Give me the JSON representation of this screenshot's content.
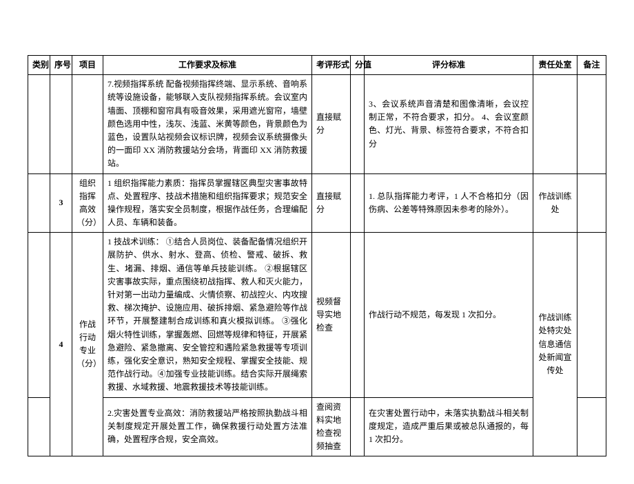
{
  "headers": {
    "category": "类别",
    "seq": "序号",
    "project": "项目",
    "requirement": "工作要求及标准",
    "form": "考评形式",
    "score": "分值",
    "criteria": "评分标准",
    "dept": "责任处室",
    "note": "备注"
  },
  "rows": [
    {
      "category": "",
      "seq": "",
      "project": "",
      "requirement": "7.视频指挥系统 配备视频指挥终端、显示系统、音响系统等设施设备，能够联入支队视频指挥系统。会议室内墙面、顶棚和窗帘具有吸音效果，采用遮光窗帘，墙壁颜色选用中性，浅灰、浅蓝、米黄等颜色，背景颜色为蓝色，设置队站视频会议标识牌，视频会议系统摄像头的一面印 XX 消防救援站分会场，背面印 XX 消防救援站。",
      "form": "直接赋分",
      "score": "",
      "criteria": "3、会议系统声音清楚和图像清晰，会议控制正常，不符合要求，扣分。\n4、会议室颜色、灯光、背景、标签符合要求，不符合扣分",
      "dept": "",
      "note": ""
    },
    {
      "category": "",
      "seq": "3",
      "project": "组织指挥高效（分）",
      "requirement": "1 组织指挥能力素质：指挥员掌握辖区典型灾害事故特点、处置程序、技战术措施和组织指挥要求；规范安全操作规程，落实安全员制度，根据作战任务，合理编配人员、车辆和装备。",
      "form": "直接赋分",
      "score": "",
      "criteria": "1. 总队指挥能力考评，1 人不合格扣分（因伤病、公差等特殊原因未参考的除外）。",
      "dept": "作战训练处",
      "note": ""
    },
    {
      "category": "",
      "seq": "4",
      "project": "作战行动专业（分）",
      "requirement": "1 技战术训练：\n①结合人员岗位、装备配备情况组织开展防护、供水、射水、登高、侦检、警戒、破拆、救生、堵漏、排烟、通信等单兵技能训练。\n②根据辖区灾害事故实际，重点围绕初战指挥、救人和灭火能力，针对第一出动力量编成、火情侦察、初战控火、内攻搜救、梯次掩护、设施应用、破拆排烟、紧急避险等作战环节，开展整建制合成训练和真火模拟训练。\n③强化烟火特性训练，掌握轰燃、回燃等规律和特征，开展紧急避险、紧急撤离、安全管控和遇险紧急救援等专项训练，强化安全意识，熟知安全规程、掌握安全技能、规范作战行动。④加强专业技能训练。结合实际开展绳索救援、水域救援、地震救援技术等技能训练。",
      "form": "视频督导实地检查",
      "score": "",
      "criteria": "作战行动不规范，每发现 1 次扣分。",
      "dept": "作战训练处特灾处信息通信处新闻宣传处",
      "note": ""
    },
    {
      "category": "",
      "seq": "",
      "project": "",
      "requirement": "2.灾害处置专业高效：消防救援站严格按照执勤战斗相关制度规定开展处置工作，确保救援行动处置方法准确，处置程序合规，安全高效。",
      "form": "查阅资料实地检查视频抽查",
      "score": "",
      "criteria": "在灾害处置行动中，未落实执勤战斗相关制度规定，造成严重后果或被总队通报的，每 1 次扣分。",
      "dept": "",
      "note": ""
    }
  ],
  "seq4_rowspan": 2,
  "dept4_rowspan": 2
}
